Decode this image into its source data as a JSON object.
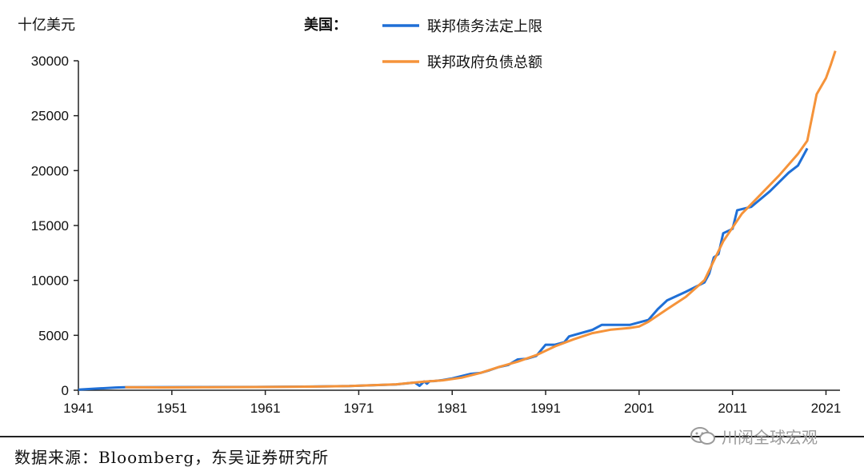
{
  "chart_data": {
    "type": "line",
    "title": "",
    "ylabel": "十亿美元",
    "xlabel": "",
    "xlim": [
      1941,
      2022
    ],
    "ylim": [
      0,
      30000
    ],
    "x_ticks": [
      1941,
      1951,
      1961,
      1971,
      1981,
      1991,
      2001,
      2011,
      2021
    ],
    "y_ticks": [
      0,
      5000,
      10000,
      15000,
      20000,
      25000,
      30000
    ],
    "legend_title": "美国：",
    "legend_position": "top-center",
    "series": [
      {
        "name": "联邦债务法定上限",
        "color": "#1f6fd6",
        "points": [
          [
            1941,
            49
          ],
          [
            1943,
            150
          ],
          [
            1945,
            250
          ],
          [
            1946,
            275
          ],
          [
            1946.3,
            275
          ],
          [
            1960,
            295
          ],
          [
            1965,
            325
          ],
          [
            1970,
            380
          ],
          [
            1975,
            530
          ],
          [
            1977,
            700
          ],
          [
            1977.5,
            400
          ],
          [
            1978,
            800
          ],
          [
            1978.3,
            600
          ],
          [
            1978.6,
            830
          ],
          [
            1979,
            830
          ],
          [
            1980,
            935
          ],
          [
            1981,
            1080
          ],
          [
            1982,
            1290
          ],
          [
            1983,
            1490
          ],
          [
            1984,
            1570
          ],
          [
            1985,
            1824
          ],
          [
            1986,
            2111
          ],
          [
            1987,
            2300
          ],
          [
            1988,
            2800
          ],
          [
            1989,
            2870
          ],
          [
            1990,
            3123
          ],
          [
            1991,
            4145
          ],
          [
            1992,
            4145
          ],
          [
            1993,
            4370
          ],
          [
            1993.5,
            4900
          ],
          [
            1996,
            5500
          ],
          [
            1997,
            5950
          ],
          [
            2000,
            5950
          ],
          [
            2002,
            6400
          ],
          [
            2003,
            7384
          ],
          [
            2004,
            8184
          ],
          [
            2006,
            8965
          ],
          [
            2008,
            9815
          ],
          [
            2008.5,
            10615
          ],
          [
            2009,
            12104
          ],
          [
            2009.5,
            12394
          ],
          [
            2010,
            14294
          ],
          [
            2011,
            14694
          ],
          [
            2011.5,
            16394
          ],
          [
            2013,
            16699
          ],
          [
            2015,
            18113
          ],
          [
            2017,
            19808
          ],
          [
            2018,
            20456
          ],
          [
            2019,
            22030
          ]
        ]
      },
      {
        "name": "联邦政府负债总额",
        "color": "#f5933a",
        "points": [
          [
            1946,
            270
          ],
          [
            1950,
            257
          ],
          [
            1955,
            274
          ],
          [
            1960,
            290
          ],
          [
            1965,
            322
          ],
          [
            1970,
            380
          ],
          [
            1975,
            540
          ],
          [
            1978,
            780
          ],
          [
            1980,
            900
          ],
          [
            1982,
            1140
          ],
          [
            1984,
            1570
          ],
          [
            1986,
            2120
          ],
          [
            1988,
            2600
          ],
          [
            1990,
            3200
          ],
          [
            1992,
            4000
          ],
          [
            1994,
            4640
          ],
          [
            1996,
            5200
          ],
          [
            1998,
            5520
          ],
          [
            2000,
            5670
          ],
          [
            2001,
            5800
          ],
          [
            2002,
            6230
          ],
          [
            2004,
            7380
          ],
          [
            2006,
            8500
          ],
          [
            2008,
            10020
          ],
          [
            2010,
            13560
          ],
          [
            2012,
            16070
          ],
          [
            2014,
            17820
          ],
          [
            2016,
            19570
          ],
          [
            2018,
            21520
          ],
          [
            2019,
            22720
          ],
          [
            2020,
            26950
          ],
          [
            2021,
            28430
          ],
          [
            2021.5,
            29600
          ],
          [
            2022,
            30900
          ]
        ]
      }
    ]
  },
  "source": "数据来源：Bloomberg，东吴证券研究所",
  "watermark": "川阅全球宏观"
}
